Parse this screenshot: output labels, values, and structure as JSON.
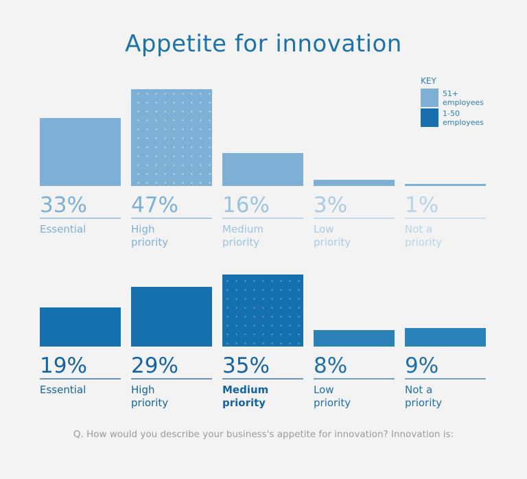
{
  "title": "Appetite for innovation",
  "key": {
    "title": "KEY",
    "items": [
      {
        "label_lines": [
          "51+",
          "employees"
        ],
        "color": "#7db0d4"
      },
      {
        "label_lines": [
          "1-50",
          "employees"
        ],
        "color": "#1570ad"
      }
    ]
  },
  "footnote": "Q. How would you describe your business's appetite for innovation? Innovation is:",
  "chart_data": [
    {
      "type": "bar",
      "series_key": "51+ employees",
      "categories": [
        [
          "Essential"
        ],
        [
          "High",
          "priority"
        ],
        [
          "Medium",
          "priority"
        ],
        [
          "Low",
          "priority"
        ],
        [
          "Not a",
          "priority"
        ]
      ],
      "values": [
        33,
        47,
        16,
        3,
        1
      ],
      "labels": [
        "33%",
        "47%",
        "16%",
        "3%",
        "1%"
      ],
      "highlight_index": 1,
      "color": "#7db0d4",
      "label_colors": [
        "#7db0d4",
        "#7db0d4",
        "#9cc3de",
        "#a9cbe3",
        "#b8d4e8"
      ]
    },
    {
      "type": "bar",
      "series_key": "1-50 employees",
      "categories": [
        [
          "Essential"
        ],
        [
          "High",
          "priority"
        ],
        [
          "Medium",
          "priority"
        ],
        [
          "Low",
          "priority"
        ],
        [
          "Not a",
          "priority"
        ]
      ],
      "values": [
        19,
        29,
        35,
        8,
        9
      ],
      "labels": [
        "19%",
        "29%",
        "35%",
        "8%",
        "9%"
      ],
      "highlight_index": 2,
      "color": "#1570ad",
      "label_colors": [
        "#1563a0",
        "#1563a0",
        "#1563a0",
        "#1f6fa8",
        "#1f6fa8"
      ],
      "bar_colors": [
        "#1570ad",
        "#1570ad",
        "#1570ad",
        "#2a82b9",
        "#2a82b9"
      ]
    }
  ]
}
